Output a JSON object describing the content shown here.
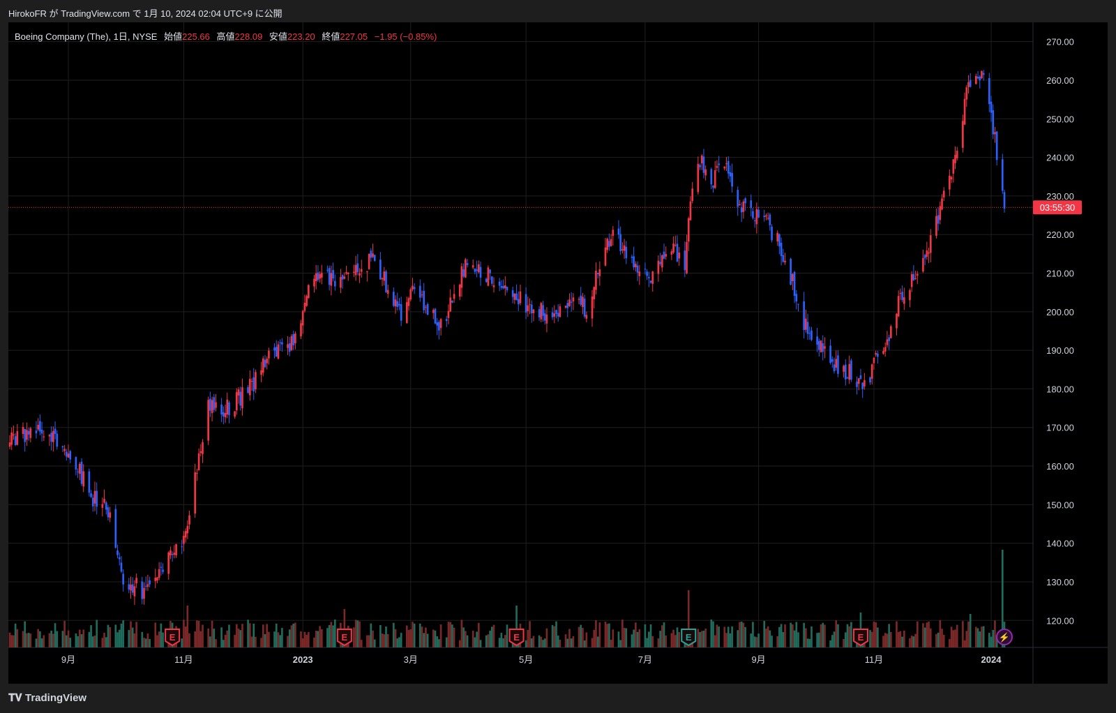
{
  "header": {
    "published_text": "HirokoFR が TradingView.com で 1月 10, 2024 02:04 UTC+9 に公開"
  },
  "legend": {
    "symbol": "Boeing Company (The), 1日, NYSE",
    "open_label": "始値",
    "open": "225.66",
    "high_label": "高値",
    "high": "228.09",
    "low_label": "安値",
    "low": "223.20",
    "close_label": "終値",
    "close": "227.05",
    "change": "−1.95 (−0.85%)"
  },
  "countdown": "03:55:30",
  "footer": {
    "brand": "TradingView"
  },
  "colors": {
    "up": "#f23645",
    "down": "#2962ff",
    "vol_up": "#7a2828",
    "vol_down": "#1f6b5c",
    "earnings": "#f23645",
    "dividend": "#26a69a",
    "flash": "#9c27b0"
  },
  "chart_data": {
    "type": "candlestick",
    "y_ticks": [
      "270.00",
      "260.00",
      "250.00",
      "240.00",
      "230.00",
      "220.00",
      "210.00",
      "200.00",
      "190.00",
      "180.00",
      "170.00",
      "160.00",
      "150.00",
      "140.00",
      "130.00",
      "120.00"
    ],
    "ylim": [
      113,
      275
    ],
    "x_ticks": [
      {
        "label": "9月",
        "date": "2022-09-01",
        "bold": false
      },
      {
        "label": "11月",
        "date": "2022-11-01",
        "bold": false
      },
      {
        "label": "2023",
        "date": "2023-01-03",
        "bold": true
      },
      {
        "label": "3月",
        "date": "2023-03-01",
        "bold": false
      },
      {
        "label": "5月",
        "date": "2023-05-01",
        "bold": false
      },
      {
        "label": "7月",
        "date": "2023-07-03",
        "bold": false
      },
      {
        "label": "9月",
        "date": "2023-09-01",
        "bold": false
      },
      {
        "label": "11月",
        "date": "2023-11-01",
        "bold": false
      },
      {
        "label": "2024",
        "date": "2024-01-02",
        "bold": true
      }
    ],
    "last_price": 227.05,
    "price_path": [
      [
        "2022-08-01",
        166
      ],
      [
        "2022-08-16",
        171
      ],
      [
        "2022-08-26",
        166
      ],
      [
        "2022-09-06",
        159
      ],
      [
        "2022-09-14",
        152
      ],
      [
        "2022-09-22",
        148
      ],
      [
        "2022-09-29",
        132
      ],
      [
        "2022-10-06",
        129
      ],
      [
        "2022-10-13",
        127
      ],
      [
        "2022-10-20",
        133
      ],
      [
        "2022-10-27",
        140
      ],
      [
        "2022-11-02",
        142
      ],
      [
        "2022-11-08",
        160
      ],
      [
        "2022-11-14",
        176
      ],
      [
        "2022-11-22",
        174
      ],
      [
        "2022-12-01",
        178
      ],
      [
        "2022-12-09",
        182
      ],
      [
        "2022-12-16",
        189
      ],
      [
        "2022-12-23",
        190
      ],
      [
        "2022-12-30",
        192
      ],
      [
        "2023-01-06",
        205
      ],
      [
        "2023-01-13",
        210
      ],
      [
        "2023-01-25",
        208
      ],
      [
        "2023-02-03",
        212
      ],
      [
        "2023-02-10",
        214
      ],
      [
        "2023-02-17",
        206
      ],
      [
        "2023-02-24",
        200
      ],
      [
        "2023-03-03",
        208
      ],
      [
        "2023-03-10",
        200
      ],
      [
        "2023-03-17",
        196
      ],
      [
        "2023-03-24",
        205
      ],
      [
        "2023-03-31",
        213
      ],
      [
        "2023-04-10",
        210
      ],
      [
        "2023-04-21",
        205
      ],
      [
        "2023-05-01",
        202
      ],
      [
        "2023-05-12",
        200
      ],
      [
        "2023-05-19",
        200
      ],
      [
        "2023-05-26",
        205
      ],
      [
        "2023-06-02",
        200
      ],
      [
        "2023-06-09",
        212
      ],
      [
        "2023-06-16",
        220
      ],
      [
        "2023-06-23",
        215
      ],
      [
        "2023-06-30",
        208
      ],
      [
        "2023-07-10",
        211
      ],
      [
        "2023-07-17",
        217
      ],
      [
        "2023-07-24",
        212
      ],
      [
        "2023-07-26",
        226
      ],
      [
        "2023-08-01",
        239
      ],
      [
        "2023-08-07",
        234
      ],
      [
        "2023-08-14",
        238
      ],
      [
        "2023-08-21",
        228
      ],
      [
        "2023-08-28",
        225
      ],
      [
        "2023-09-05",
        224
      ],
      [
        "2023-09-12",
        217
      ],
      [
        "2023-09-19",
        208
      ],
      [
        "2023-09-26",
        196
      ],
      [
        "2023-10-05",
        190
      ],
      [
        "2023-10-12",
        186
      ],
      [
        "2023-10-19",
        184
      ],
      [
        "2023-10-26",
        180
      ],
      [
        "2023-11-01",
        186
      ],
      [
        "2023-11-06",
        192
      ],
      [
        "2023-11-10",
        194
      ],
      [
        "2023-11-14",
        203
      ],
      [
        "2023-11-22",
        208
      ],
      [
        "2023-11-30",
        216
      ],
      [
        "2023-12-07",
        228
      ],
      [
        "2023-12-14",
        240
      ],
      [
        "2023-12-21",
        259
      ],
      [
        "2023-12-28",
        262
      ],
      [
        "2024-01-03",
        248
      ],
      [
        "2024-01-08",
        230
      ],
      [
        "2024-01-09",
        227
      ]
    ],
    "volume_spikes": [
      {
        "date": "2022-11-03",
        "value": 60
      },
      {
        "date": "2023-01-25",
        "value": 55
      },
      {
        "date": "2023-04-26",
        "value": 60
      },
      {
        "date": "2023-07-26",
        "value": 82
      },
      {
        "date": "2023-10-25",
        "value": 50
      },
      {
        "date": "2023-12-22",
        "value": 48
      },
      {
        "date": "2024-01-08",
        "value": 140
      }
    ],
    "event_markers": [
      {
        "date": "2022-10-26",
        "label": "E",
        "kind": "earnings"
      },
      {
        "date": "2023-01-25",
        "label": "E",
        "kind": "earnings"
      },
      {
        "date": "2023-04-26",
        "label": "E",
        "kind": "earnings"
      },
      {
        "date": "2023-07-26",
        "label": "E",
        "kind": "dividend"
      },
      {
        "date": "2023-10-25",
        "label": "E",
        "kind": "earnings"
      },
      {
        "date": "2024-01-09",
        "label": "⚡",
        "kind": "flash"
      }
    ]
  }
}
